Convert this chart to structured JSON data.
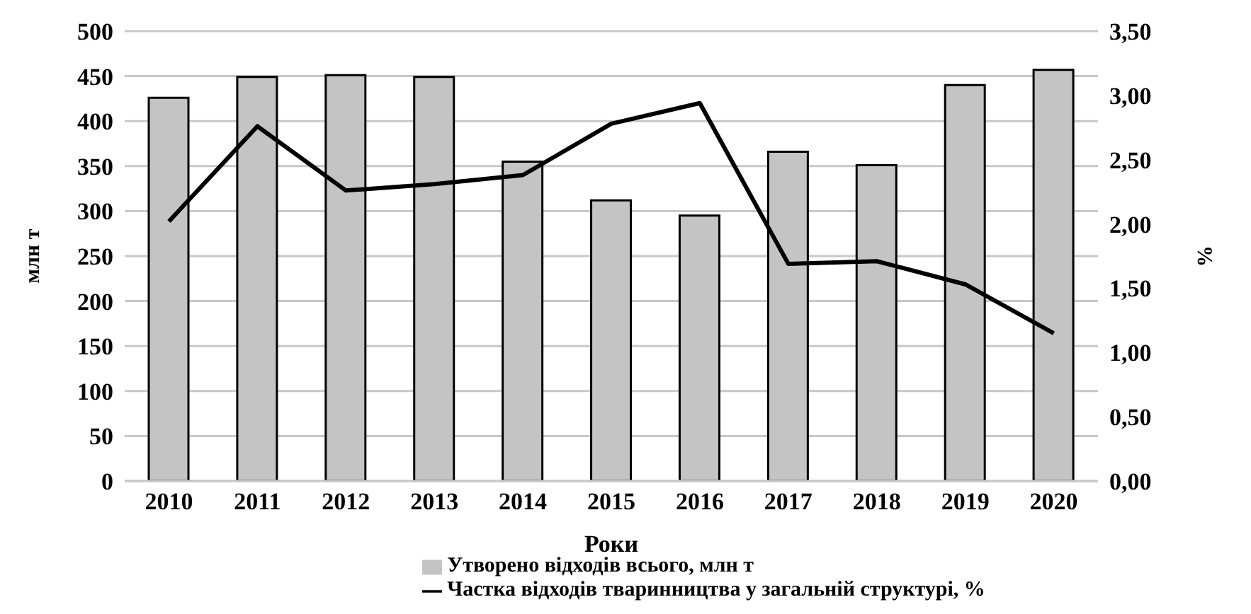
{
  "chart_data": {
    "type": "bar",
    "xlabel": "Роки",
    "ylabel": "млн т",
    "y2label": "%",
    "categories": [
      "2010",
      "2011",
      "2012",
      "2013",
      "2014",
      "2015",
      "2016",
      "2017",
      "2018",
      "2019",
      "2020"
    ],
    "series": [
      {
        "name": "Утворено відходів всього, млн т",
        "color": "#c4c4c4",
        "values": [
          426,
          449,
          451,
          449,
          355,
          312,
          295,
          366,
          351,
          440,
          457
        ]
      },
      {
        "name": "Частка відходів тваринництва у загальній структурі, %",
        "type": "line",
        "axis": "y2",
        "color": "#000000",
        "values": [
          2.02,
          2.76,
          2.26,
          2.31,
          2.38,
          2.78,
          2.94,
          1.69,
          1.71,
          1.53,
          1.15
        ]
      }
    ],
    "ylim": [
      0,
      500
    ],
    "yticks": [
      0,
      50,
      100,
      150,
      200,
      250,
      300,
      350,
      400,
      450,
      500
    ],
    "y2lim": [
      0,
      3.5
    ],
    "y2ticks": [
      {
        "value": 0,
        "label": "0,00"
      },
      {
        "value": 0.5,
        "label": "0,50"
      },
      {
        "value": 1,
        "label": "1,00"
      },
      {
        "value": 1.5,
        "label": "1,50"
      },
      {
        "value": 2,
        "label": "2,00"
      },
      {
        "value": 2.5,
        "label": "2,50"
      },
      {
        "value": 3,
        "label": "3,00"
      },
      {
        "value": 3.5,
        "label": "3,50"
      }
    ],
    "grid": "y",
    "legend": "bottom",
    "marker": "none"
  }
}
